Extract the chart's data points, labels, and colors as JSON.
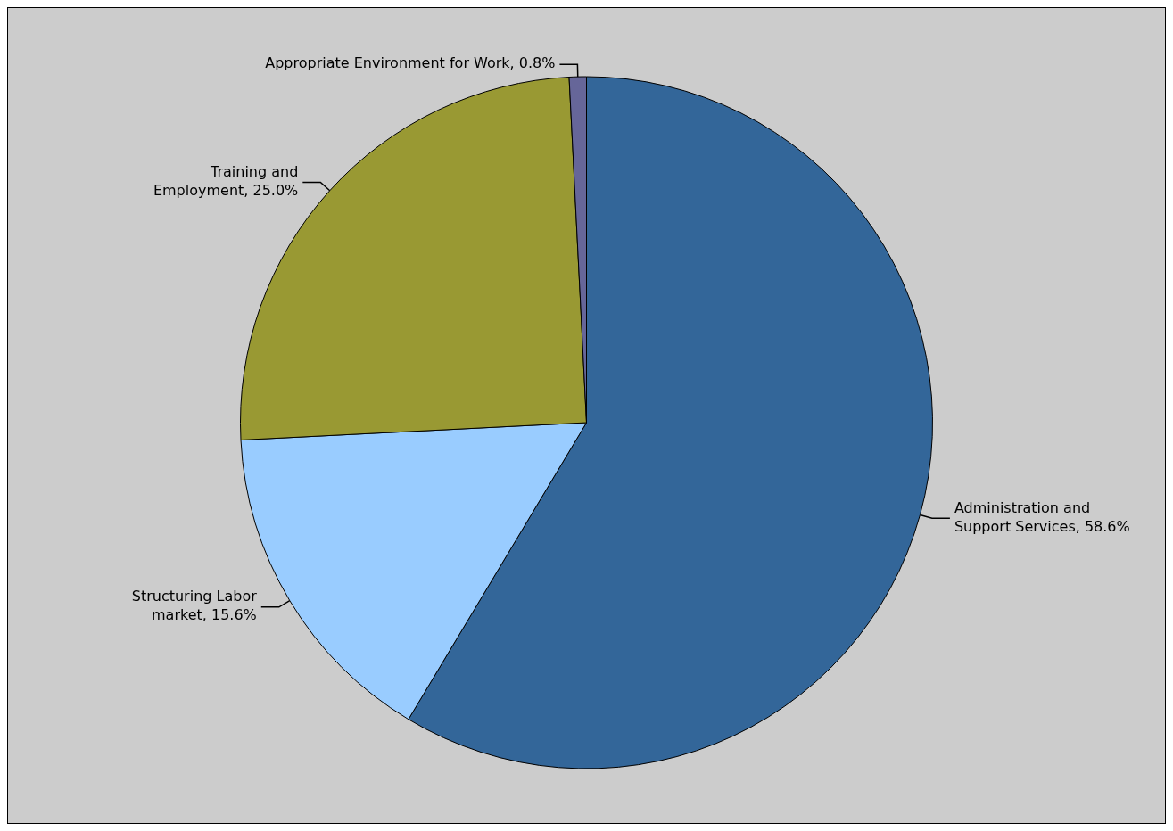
{
  "chart_data": {
    "type": "pie",
    "categories": [
      "Administration and Support Services",
      "Structuring Labor market",
      "Training and Employment",
      "Appropriate Environment for Work"
    ],
    "values": [
      58.6,
      15.6,
      25.0,
      0.8
    ],
    "value_labels": [
      "58.6%",
      "15.6%",
      "25.0%",
      "0.8%"
    ],
    "colors": [
      "#336699",
      "#99ccff",
      "#999933",
      "#666699"
    ],
    "legend": false
  }
}
